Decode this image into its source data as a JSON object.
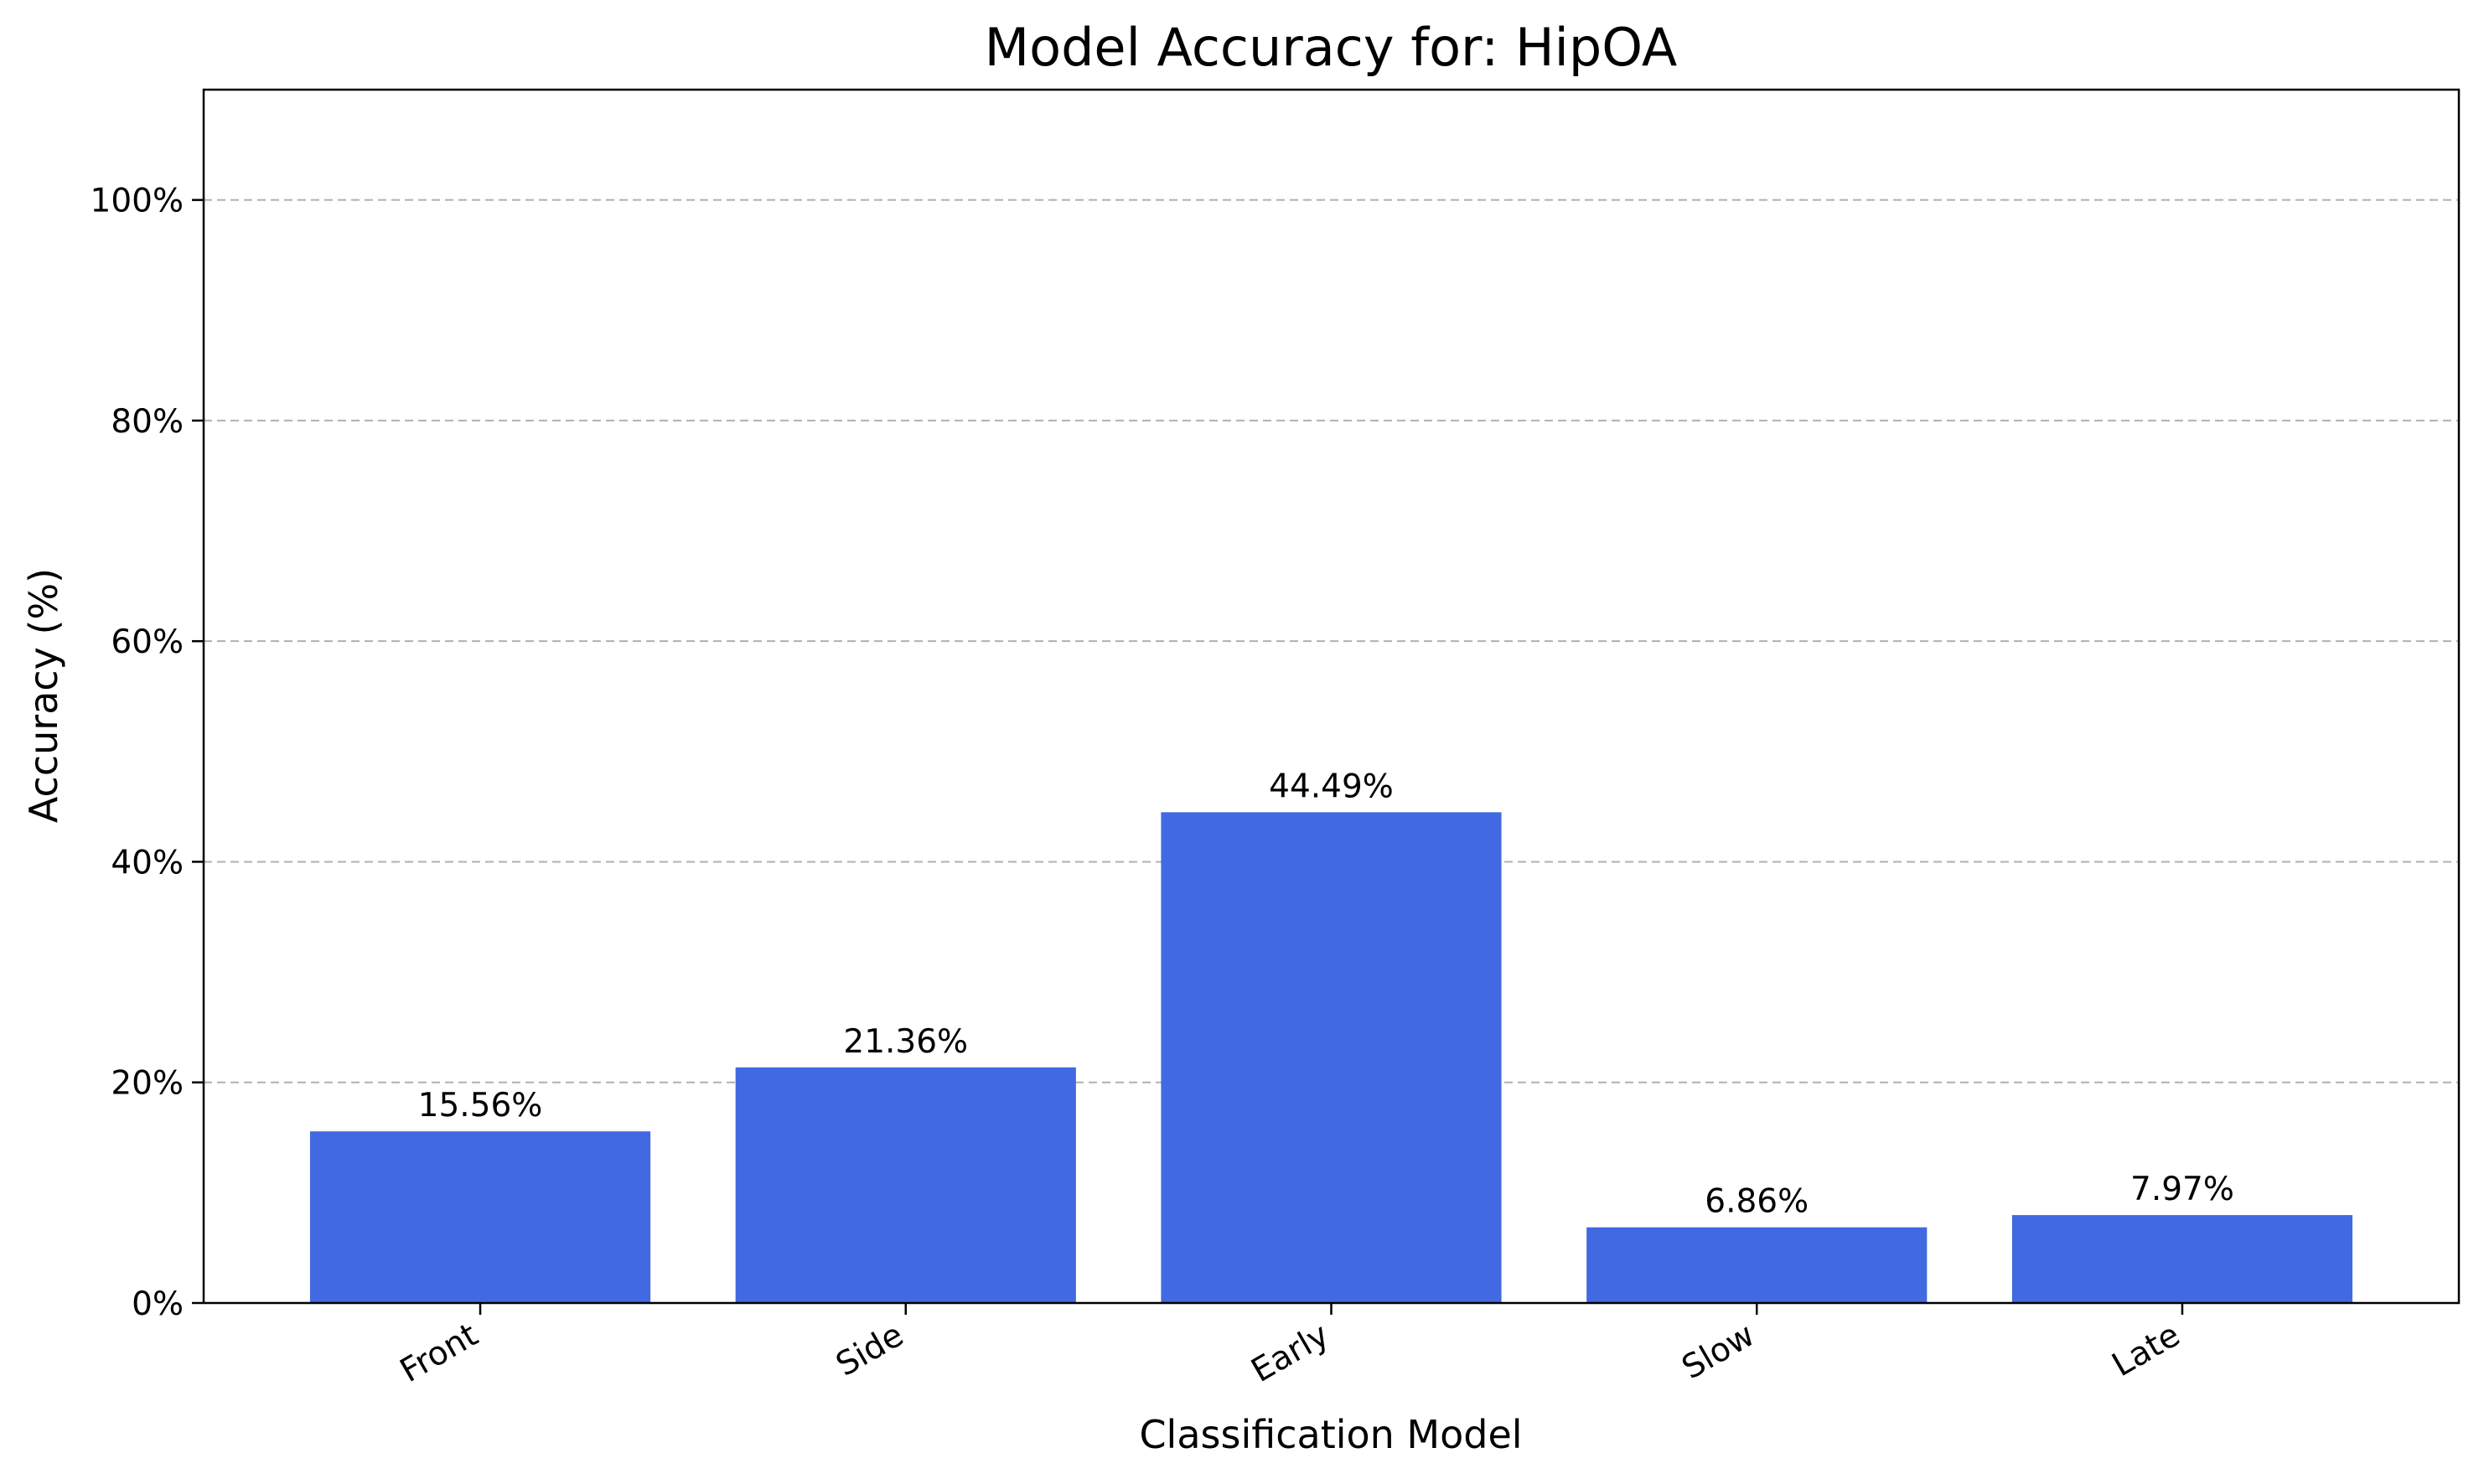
{
  "chart_data": {
    "type": "bar",
    "title": "Model Accuracy for: HipOA",
    "xlabel": "Classification Model",
    "ylabel": "Accuracy (%)",
    "categories": [
      "Front",
      "Side",
      "Early",
      "Slow",
      "Late"
    ],
    "values": [
      15.56,
      21.36,
      44.49,
      6.86,
      7.97
    ],
    "data_labels": [
      "15.56%",
      "21.36%",
      "44.49%",
      "6.86%",
      "7.97%"
    ],
    "ylim": [
      0,
      110
    ],
    "yticks": [
      0,
      20,
      40,
      60,
      80,
      100
    ],
    "ytick_labels": [
      "0%",
      "20%",
      "40%",
      "60%",
      "80%",
      "100%"
    ],
    "grid": "y-dashed",
    "legend": "none",
    "bar_color": "#4169e1"
  }
}
